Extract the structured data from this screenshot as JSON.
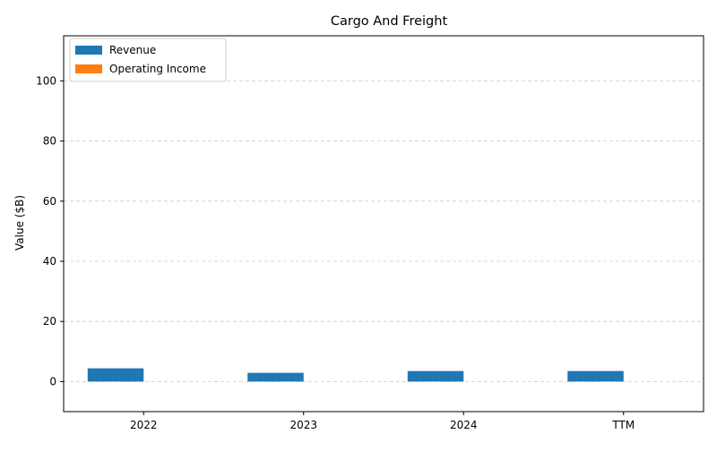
{
  "chart_data": {
    "type": "bar",
    "title": "Cargo And Freight",
    "xlabel": "",
    "ylabel": "Value ($B)",
    "categories": [
      "2022",
      "2023",
      "2024",
      "TTM"
    ],
    "series": [
      {
        "name": "Revenue",
        "color": "#1f77b4",
        "values": [
          4.4,
          2.9,
          3.5,
          3.5
        ]
      },
      {
        "name": "Operating Income",
        "color": "#ff7f0e",
        "values": [
          0.0,
          0.0,
          0.0,
          0.0
        ]
      }
    ],
    "ylim": [
      -10,
      115
    ],
    "yticks": [
      0,
      20,
      40,
      60,
      80,
      100
    ],
    "grid": true,
    "legend_position": "top-left"
  }
}
